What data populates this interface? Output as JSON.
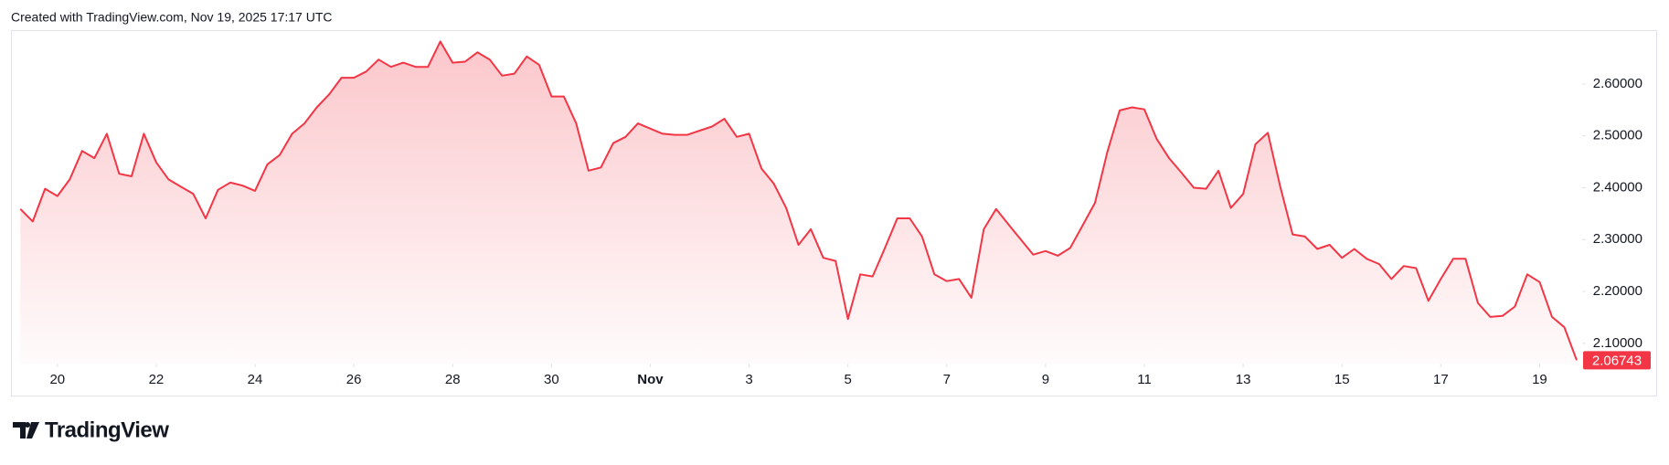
{
  "credit": "Created with TradingView.com, Nov 19, 2025 17:17 UTC",
  "logo": "TradingView",
  "chart_data": {
    "type": "area",
    "color": "#f23645",
    "x": [
      "2025-10-19T06:00",
      "2025-10-19T12:00",
      "2025-10-19T18:00",
      "2025-10-20T00:00",
      "2025-10-20T06:00",
      "2025-10-20T12:00",
      "2025-10-20T18:00",
      "2025-10-21T00:00",
      "2025-10-21T06:00",
      "2025-10-21T12:00",
      "2025-10-21T18:00",
      "2025-10-22T00:00",
      "2025-10-22T06:00",
      "2025-10-22T12:00",
      "2025-10-22T18:00",
      "2025-10-23T00:00",
      "2025-10-23T06:00",
      "2025-10-23T12:00",
      "2025-10-23T18:00",
      "2025-10-24T00:00",
      "2025-10-24T06:00",
      "2025-10-24T12:00",
      "2025-10-24T18:00",
      "2025-10-25T00:00",
      "2025-10-25T06:00",
      "2025-10-25T12:00",
      "2025-10-25T18:00",
      "2025-10-26T00:00",
      "2025-10-26T06:00",
      "2025-10-26T12:00",
      "2025-10-26T18:00",
      "2025-10-27T00:00",
      "2025-10-27T06:00",
      "2025-10-27T12:00",
      "2025-10-27T18:00",
      "2025-10-28T00:00",
      "2025-10-28T06:00",
      "2025-10-28T12:00",
      "2025-10-28T18:00",
      "2025-10-29T00:00",
      "2025-10-29T06:00",
      "2025-10-29T12:00",
      "2025-10-29T18:00",
      "2025-10-30T00:00",
      "2025-10-30T06:00",
      "2025-10-30T12:00",
      "2025-10-30T18:00",
      "2025-10-31T00:00",
      "2025-10-31T06:00",
      "2025-10-31T12:00",
      "2025-10-31T18:00",
      "2025-11-01T00:00",
      "2025-11-01T06:00",
      "2025-11-01T12:00",
      "2025-11-01T18:00",
      "2025-11-02T00:00",
      "2025-11-02T06:00",
      "2025-11-02T12:00",
      "2025-11-02T18:00",
      "2025-11-03T00:00",
      "2025-11-03T06:00",
      "2025-11-03T12:00",
      "2025-11-03T18:00",
      "2025-11-04T00:00",
      "2025-11-04T06:00",
      "2025-11-04T12:00",
      "2025-11-04T18:00",
      "2025-11-05T00:00",
      "2025-11-05T06:00",
      "2025-11-05T12:00",
      "2025-11-05T18:00",
      "2025-11-06T00:00",
      "2025-11-06T06:00",
      "2025-11-06T12:00",
      "2025-11-06T18:00",
      "2025-11-07T00:00",
      "2025-11-07T06:00",
      "2025-11-07T12:00",
      "2025-11-07T18:00",
      "2025-11-08T00:00",
      "2025-11-08T06:00",
      "2025-11-08T12:00",
      "2025-11-08T18:00",
      "2025-11-09T00:00",
      "2025-11-09T06:00",
      "2025-11-09T12:00",
      "2025-11-09T18:00",
      "2025-11-10T00:00",
      "2025-11-10T06:00",
      "2025-11-10T12:00",
      "2025-11-10T18:00",
      "2025-11-11T00:00",
      "2025-11-11T06:00",
      "2025-11-11T12:00",
      "2025-11-11T18:00",
      "2025-11-12T00:00",
      "2025-11-12T06:00",
      "2025-11-12T12:00",
      "2025-11-12T18:00",
      "2025-11-13T00:00",
      "2025-11-13T06:00",
      "2025-11-13T12:00",
      "2025-11-13T18:00",
      "2025-11-14T00:00",
      "2025-11-14T06:00",
      "2025-11-14T12:00",
      "2025-11-14T18:00",
      "2025-11-15T00:00",
      "2025-11-15T06:00",
      "2025-11-15T12:00",
      "2025-11-15T18:00",
      "2025-11-16T00:00",
      "2025-11-16T06:00",
      "2025-11-16T12:00",
      "2025-11-16T18:00",
      "2025-11-17T00:00",
      "2025-11-17T06:00",
      "2025-11-17T12:00",
      "2025-11-17T18:00",
      "2025-11-18T00:00",
      "2025-11-18T06:00",
      "2025-11-18T12:00",
      "2025-11-18T18:00",
      "2025-11-19T00:00",
      "2025-11-19T06:00",
      "2025-11-19T12:00",
      "2025-11-19T18:00"
    ],
    "values": [
      2.359,
      2.335,
      2.398,
      2.384,
      2.416,
      2.471,
      2.457,
      2.504,
      2.427,
      2.422,
      2.504,
      2.449,
      2.416,
      2.402,
      2.388,
      2.341,
      2.396,
      2.41,
      2.404,
      2.394,
      2.445,
      2.463,
      2.504,
      2.524,
      2.555,
      2.58,
      2.612,
      2.612,
      2.624,
      2.647,
      2.633,
      2.641,
      2.633,
      2.633,
      2.682,
      2.641,
      2.643,
      2.661,
      2.647,
      2.616,
      2.62,
      2.653,
      2.637,
      2.576,
      2.576,
      2.524,
      2.433,
      2.439,
      2.486,
      2.498,
      2.524,
      2.514,
      2.504,
      2.502,
      2.502,
      2.51,
      2.518,
      2.533,
      2.498,
      2.504,
      2.437,
      2.408,
      2.361,
      2.29,
      2.32,
      2.265,
      2.259,
      2.147,
      2.233,
      2.229,
      2.284,
      2.341,
      2.341,
      2.306,
      2.233,
      2.22,
      2.224,
      2.188,
      2.32,
      2.359,
      2.329,
      2.3,
      2.271,
      2.278,
      2.269,
      2.284,
      2.327,
      2.371,
      2.469,
      2.549,
      2.555,
      2.551,
      2.494,
      2.457,
      2.429,
      2.4,
      2.398,
      2.433,
      2.361,
      2.388,
      2.484,
      2.506,
      2.402,
      2.31,
      2.306,
      2.282,
      2.29,
      2.265,
      2.282,
      2.263,
      2.253,
      2.224,
      2.249,
      2.245,
      2.182,
      2.224,
      2.263,
      2.263,
      2.178,
      2.151,
      2.153,
      2.171,
      2.233,
      2.218,
      2.151,
      2.131,
      2.06743
    ],
    "last_price": {
      "value": 2.06743,
      "label": "2.06743"
    },
    "xlim": [
      "2025-10-19T01:40",
      "2025-11-19T20:40"
    ],
    "xticks": [
      {
        "value": "2025-10-20T00:00",
        "label": "20"
      },
      {
        "value": "2025-10-22T00:00",
        "label": "22"
      },
      {
        "value": "2025-10-24T00:00",
        "label": "24"
      },
      {
        "value": "2025-10-26T00:00",
        "label": "26"
      },
      {
        "value": "2025-10-28T00:00",
        "label": "28"
      },
      {
        "value": "2025-10-30T00:00",
        "label": "30"
      },
      {
        "value": "2025-11-01T00:00",
        "label": "Nov"
      },
      {
        "value": "2025-11-03T00:00",
        "label": "3"
      },
      {
        "value": "2025-11-05T00:00",
        "label": "5"
      },
      {
        "value": "2025-11-07T00:00",
        "label": "7"
      },
      {
        "value": "2025-11-09T00:00",
        "label": "9"
      },
      {
        "value": "2025-11-11T00:00",
        "label": "11"
      },
      {
        "value": "2025-11-13T00:00",
        "label": "13"
      },
      {
        "value": "2025-11-15T00:00",
        "label": "15"
      },
      {
        "value": "2025-11-17T00:00",
        "label": "17"
      },
      {
        "value": "2025-11-19T00:00",
        "label": "19"
      }
    ],
    "ylim": [
      2.061,
      2.702
    ],
    "yticks": [
      {
        "value": 2.1,
        "label": "2.10000"
      },
      {
        "value": 2.2,
        "label": "2.20000"
      },
      {
        "value": 2.3,
        "label": "2.30000"
      },
      {
        "value": 2.4,
        "label": "2.40000"
      },
      {
        "value": 2.5,
        "label": "2.50000"
      },
      {
        "value": 2.6,
        "label": "2.60000"
      }
    ]
  }
}
